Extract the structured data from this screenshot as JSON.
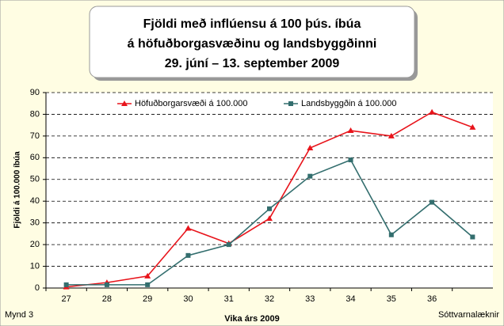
{
  "chart_data": {
    "type": "line",
    "title": [
      "Fjöldi með inflúensu á 100 þús. íbúa",
      "á höfuðborgasvæðinu og landsbyggðinni",
      "29. júní – 13. september 2009"
    ],
    "xlabel": "Vika árs 2009",
    "ylabel": "Fjöldi á 100.000 íbúa",
    "categories": [
      "27",
      "28",
      "29",
      "30",
      "31",
      "32",
      "33",
      "34",
      "35",
      "36",
      null
    ],
    "series": [
      {
        "name": "Höfuðborgarsvæði á 100.000",
        "color": "#e8141b",
        "marker": "triangle",
        "values": [
          0.5,
          2.5,
          5.5,
          27.5,
          20.5,
          32,
          64.5,
          72.5,
          70,
          81,
          74
        ]
      },
      {
        "name": "Landsbyggðin á 100.000",
        "color": "#336e6e",
        "marker": "square",
        "values": [
          1.5,
          1.5,
          1.5,
          15,
          20,
          36.5,
          51.5,
          59,
          24.5,
          39.5,
          23.5
        ]
      }
    ],
    "ylim": [
      0,
      90
    ],
    "yticks": [
      0,
      10,
      20,
      30,
      40,
      50,
      60,
      70,
      80,
      90
    ],
    "grid": true,
    "legend": "top",
    "footer_left": "Mynd 3",
    "footer_right": "Sóttvarnalæknir"
  }
}
